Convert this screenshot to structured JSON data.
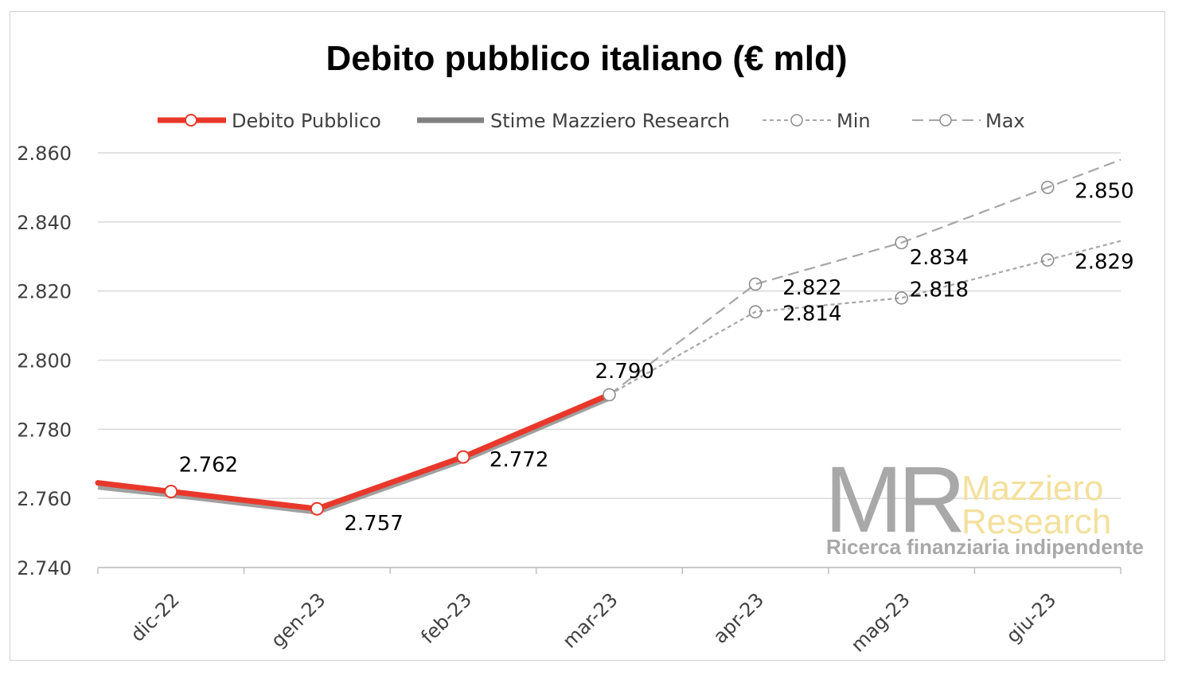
{
  "chart_data": {
    "type": "line",
    "title": "Debito pubblico italiano (€ mld)",
    "categories": [
      "dic-22",
      "gen-23",
      "feb-23",
      "mar-23",
      "apr-23",
      "mag-23",
      "giu-23"
    ],
    "yticks": [
      "2.860",
      "2.840",
      "2.820",
      "2.800",
      "2.780",
      "2.760",
      "2.740"
    ],
    "ylim": [
      2740,
      2860
    ],
    "grid": true,
    "legend_position": "top",
    "series": [
      {
        "name": "Debito Pubblico",
        "color": "#e8382b",
        "values": [
          2762,
          2757,
          2772,
          2790,
          null,
          null,
          null
        ],
        "labels": [
          "2.762",
          "2.757",
          "2.772",
          "2.790",
          "",
          "",
          ""
        ]
      },
      {
        "name": "Stime Mazziero Research",
        "color": "#808080",
        "values": [
          2762,
          2757,
          2772,
          2790,
          null,
          null,
          null
        ],
        "labels": [
          "",
          "",
          "",
          "",
          "",
          "",
          ""
        ]
      },
      {
        "name": "Min",
        "color": "#a6a6a6",
        "dash": "short",
        "values": [
          null,
          null,
          null,
          2790,
          2814,
          2818,
          2829
        ],
        "labels": [
          "",
          "",
          "",
          "",
          "2.814",
          "2.818",
          "2.829"
        ]
      },
      {
        "name": "Max",
        "color": "#a6a6a6",
        "dash": "long",
        "values": [
          null,
          null,
          null,
          2790,
          2822,
          2834,
          2850
        ],
        "labels": [
          "",
          "",
          "",
          "",
          "2.822",
          "2.834",
          "2.850"
        ]
      }
    ]
  },
  "logo": {
    "mark": "MR",
    "name_line1": "Mazziero",
    "name_line2": "Research",
    "tagline": "Ricerca finanziaria indipendente"
  }
}
